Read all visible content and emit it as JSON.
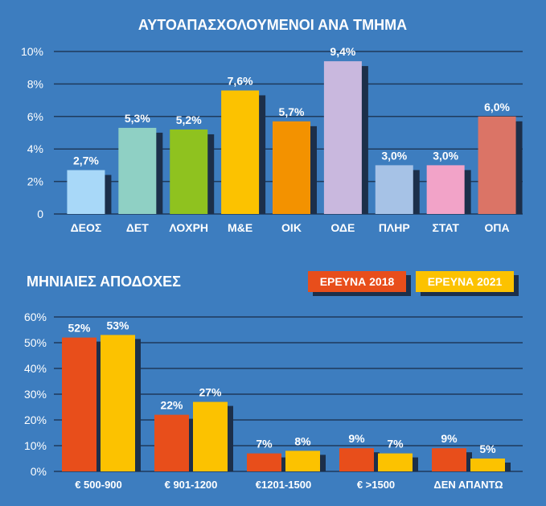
{
  "colors": {
    "background": "#3d7dbf",
    "gridline": "#1f3a5c",
    "shadow": "#1c2f4a",
    "text": "#ffffff",
    "series_2018": "#e84e1b",
    "series_2021": "#fcc200"
  },
  "chart_data": [
    {
      "type": "bar",
      "title": "ΑΥΤΟΑΠΑΣΧΟΛΟΥΜΕΝΟΙ ΑΝΑ ΤΜΗΜΑ",
      "categories": [
        "ΔΕΟΣ",
        "ΔΕΤ",
        "ΛΟΧΡΗ",
        "Μ&Ε",
        "ΟΙΚ",
        "ΟΔΕ",
        "ΠΛΗΡ",
        "ΣΤΑΤ",
        "ΟΠΑ"
      ],
      "values": [
        2.7,
        5.3,
        5.2,
        7.6,
        5.7,
        9.4,
        3.0,
        3.0,
        6.0
      ],
      "value_labels": [
        "2,7%",
        "5,3%",
        "5,2%",
        "7,6%",
        "5,7%",
        "9,4%",
        "3,0%",
        "3,0%",
        "6,0%"
      ],
      "bar_colors": [
        "#a8d8f8",
        "#8fd0c4",
        "#8fc21f",
        "#fcc200",
        "#f39200",
        "#c9b8de",
        "#a6c2e6",
        "#f2a3c8",
        "#db7466"
      ],
      "ylim": [
        0,
        10
      ],
      "yticks": [
        0,
        2,
        4,
        6,
        8,
        10
      ],
      "ytick_labels": [
        "0",
        "2%",
        "4%",
        "6%",
        "8%",
        "10%"
      ],
      "grid": true
    },
    {
      "type": "bar",
      "title": "ΜΗΝΙΑΙΕΣ ΑΠΟΔΟΧΕΣ",
      "categories": [
        "€ 500-900",
        "€ 901-1200",
        "€1201-1500",
        "€ >1500",
        "ΔΕΝ ΑΠΑΝΤΩ"
      ],
      "series": [
        {
          "name": "ΕΡΕΥΝΑ 2018",
          "values": [
            52,
            22,
            7,
            9,
            9
          ],
          "labels": [
            "52%",
            "22%",
            "7%",
            "9%",
            "9%"
          ]
        },
        {
          "name": "ΕΡΕΥΝΑ 2021",
          "values": [
            53,
            27,
            8,
            7,
            5
          ],
          "labels": [
            "53%",
            "27%",
            "8%",
            "7%",
            "5%"
          ]
        }
      ],
      "ylim": [
        0,
        60
      ],
      "yticks": [
        0,
        10,
        20,
        30,
        40,
        50,
        60
      ],
      "ytick_labels": [
        "0%",
        "10%",
        "20%",
        "30%",
        "40%",
        "50%",
        "60%"
      ],
      "grid": true,
      "legend": "top-right"
    }
  ]
}
